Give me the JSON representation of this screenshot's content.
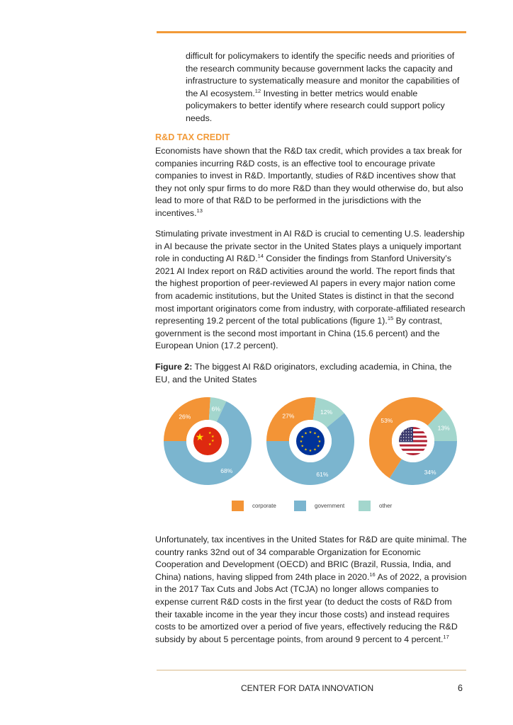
{
  "paragraphs": [
    {
      "id": "intro-continued",
      "segments": [
        {
          "t": "difficult for policymakers to identify the specific needs and priorities of the research community because government lacks the capacity and infrastructure to systematically measure and monitor the capabilities of the AI ecosystem."
        },
        {
          "sup": "12"
        },
        {
          "t": " Investing in better metrics would enable policymakers to better identify where research could support policy needs."
        }
      ]
    },
    {
      "id": "tax-credit-1",
      "segments": [
        {
          "t": "Economists have shown that the R&D tax credit, which provides a tax break for companies incurring R&D costs, is an effective tool to encourage private companies to invest in R&D. Importantly, studies of R&D incentives show that they not only spur firms to do more R&D than they would otherwise do, but also lead to more of that R&D to be performed in the jurisdictions with the incentives."
        },
        {
          "sup": "13"
        }
      ]
    },
    {
      "id": "tax-credit-2",
      "segments": [
        {
          "t": "Stimulating private investment in AI R&D is crucial to cementing U.S. leadership in AI because the private sector in the United States plays a uniquely important role in conducting AI R&D."
        },
        {
          "sup": "14"
        },
        {
          "t": " Consider the findings from Stanford University’s 2021 AI Index report on R&D activities around the world. The report finds that the highest proportion of peer-reviewed AI papers in every major nation come from academic institutions, but the United States is distinct in that the second most important originators come from industry, with corporate-affiliated research representing 19.2 percent of the total publications (figure 1)."
        },
        {
          "sup": "15"
        },
        {
          "t": " By contrast, government is the second most important in China (15.6 percent) and the European Union (17.2 percent)."
        }
      ]
    },
    {
      "id": "tax-credit-3",
      "segments": [
        {
          "t": "Unfortunately, tax incentives in the United States for R&D are quite minimal. The country ranks 32nd out of 34 comparable Organization for Economic Cooperation and Development (OECD) and BRIC (Brazil, Russia, India, and China) nations, having slipped from 24th place in 2020."
        },
        {
          "sup": "16"
        },
        {
          "t": " As of 2022, a provision in the 2017 Tax Cuts and Jobs Act (TCJA) no longer allows companies to expense current R&D costs in the first year (to deduct the costs of R&D from their taxable income in the year they incur those costs) and instead requires costs to be amortized over a period of five years, effectively reducing the R&D subsidy by about 5 percentage points, from around 9 percent to 4 percent."
        },
        {
          "sup": "17"
        }
      ]
    }
  ],
  "heading": "R&D TAX CREDIT",
  "figure": {
    "label": "Figure 2:",
    "title": " The biggest AI R&D originators, excluding academia, in China, the EU, and the United States"
  },
  "chart_data": {
    "type": "pie",
    "donut": true,
    "categories": [
      "corporate",
      "government",
      "other"
    ],
    "colors": {
      "corporate": "#f39436",
      "government": "#7bb5cf",
      "other": "#a3d6cd"
    },
    "charts": [
      {
        "region": "China",
        "flag": "china-flag",
        "values": {
          "corporate": 26,
          "government": 68,
          "other": 6
        },
        "labels": {
          "corporate": "26%",
          "government": "68%",
          "other": "6%"
        }
      },
      {
        "region": "European Union",
        "flag": "eu-flag",
        "values": {
          "corporate": 27,
          "government": 61,
          "other": 12
        },
        "labels": {
          "corporate": "27%",
          "government": "61%",
          "other": "12%"
        }
      },
      {
        "region": "United States",
        "flag": "us-flag",
        "values": {
          "corporate": 53,
          "government": 34,
          "other": 13
        },
        "labels": {
          "corporate": "53%",
          "government": "34%",
          "other": "13%"
        }
      }
    ],
    "legend": {
      "position": "bottom",
      "entries": [
        "corporate",
        "government",
        "other"
      ]
    }
  },
  "footer": {
    "org": "CENTER FOR DATA INNOVATION",
    "page": "6"
  },
  "colors": {
    "accent": "#f29a38",
    "rule_bottom": "#d9b98a"
  }
}
